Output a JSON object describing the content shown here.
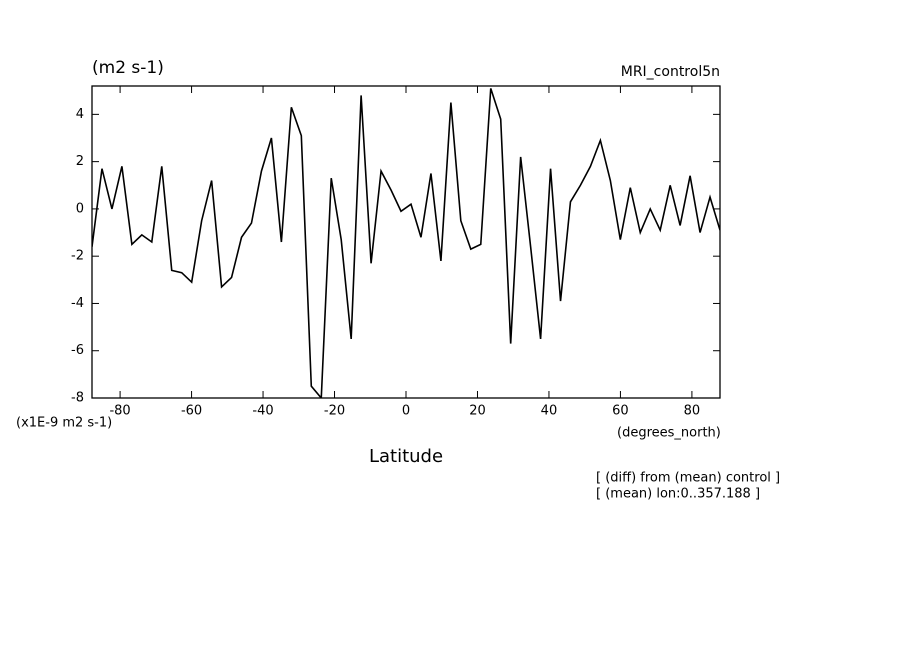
{
  "chart_data": {
    "type": "line",
    "title": "(m2 s-1)",
    "subtitle": "MRI_control5n",
    "y_label": "(x1E-9 m2 s-1)",
    "x_unit": "(degrees_north)",
    "x_label": "Latitude",
    "annotations": [
      "[ (diff) from (mean) control ]",
      "[ (mean) lon:0..357.188 ]"
    ],
    "x": [
      -87.86,
      -85.07,
      -82.28,
      -79.49,
      -76.7,
      -73.92,
      -71.13,
      -68.34,
      -65.55,
      -62.76,
      -59.97,
      -57.18,
      -54.39,
      -51.6,
      -48.81,
      -46.02,
      -43.24,
      -40.45,
      -37.66,
      -34.87,
      -32.08,
      -29.29,
      -26.5,
      -23.71,
      -20.92,
      -18.13,
      -15.34,
      -12.56,
      -9.77,
      -6.98,
      -4.19,
      -1.4,
      1.4,
      4.19,
      6.98,
      9.77,
      12.56,
      15.34,
      18.13,
      20.92,
      23.71,
      26.5,
      29.29,
      32.08,
      34.87,
      37.66,
      40.45,
      43.24,
      46.02,
      48.81,
      51.6,
      54.39,
      57.18,
      59.97,
      62.76,
      65.55,
      68.34,
      71.13,
      73.92,
      76.7,
      79.49,
      82.28,
      85.07,
      87.86
    ],
    "series": [
      {
        "color": "#000000",
        "values": [
          -1.6,
          1.7,
          0,
          1.8,
          -1.5,
          -1.1,
          -1.4,
          1.8,
          -2.6,
          -2.7,
          -3.1,
          -0.5,
          1.2,
          -3.3,
          -2.9,
          -1.2,
          -0.6,
          1.6,
          3.0,
          -1.4,
          4.3,
          3.1,
          -7.5,
          -8.0,
          1.3,
          -1.3,
          -5.5,
          4.8,
          -2.3,
          1.6,
          0.8,
          -0.1,
          0.2,
          -1.2,
          1.5,
          -2.2,
          4.5,
          -0.5,
          -1.7,
          -1.5,
          5.1,
          3.8,
          -5.7,
          2.2,
          -1.6,
          -5.5,
          1.7,
          -3.9,
          0.3,
          1.0,
          1.8,
          2.9,
          1.2,
          -1.3,
          0.9,
          -1.0,
          0.0,
          -0.9,
          1.0,
          -0.7,
          1.4,
          -1.0,
          0.5,
          -0.9
        ]
      }
    ],
    "xlim": [
      -87.86,
      87.86
    ],
    "xticks": [
      -80,
      -60,
      -40,
      -20,
      0,
      20,
      40,
      60,
      80
    ],
    "ylim": [
      -8,
      5.2
    ],
    "yticks": [
      -8,
      -6,
      -4,
      -2,
      0,
      2,
      4
    ]
  }
}
